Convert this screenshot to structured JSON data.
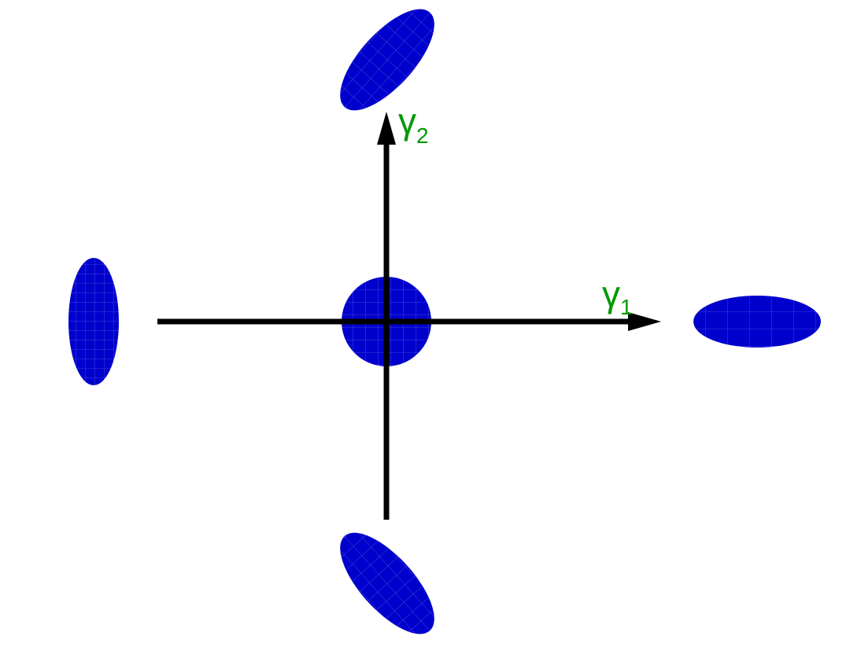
{
  "diagram": {
    "axes": {
      "x_label": "γ",
      "x_subscript": "1",
      "y_label": "γ",
      "y_subscript": "2"
    },
    "colors": {
      "ellipse_fill": "#0000cc",
      "grid_line": "#8888ee",
      "axis": "#000000",
      "label": "#009900",
      "background": "#ffffff"
    },
    "shapes": [
      {
        "name": "center-circle",
        "description_shape": "circle"
      },
      {
        "name": "right-ellipse",
        "description_shape": "horizontal-ellipse"
      },
      {
        "name": "left-ellipse",
        "description_shape": "vertical-ellipse"
      },
      {
        "name": "top-ellipse",
        "description_shape": "tilted-ellipse"
      },
      {
        "name": "bottom-ellipse",
        "description_shape": "tilted-ellipse"
      }
    ]
  }
}
